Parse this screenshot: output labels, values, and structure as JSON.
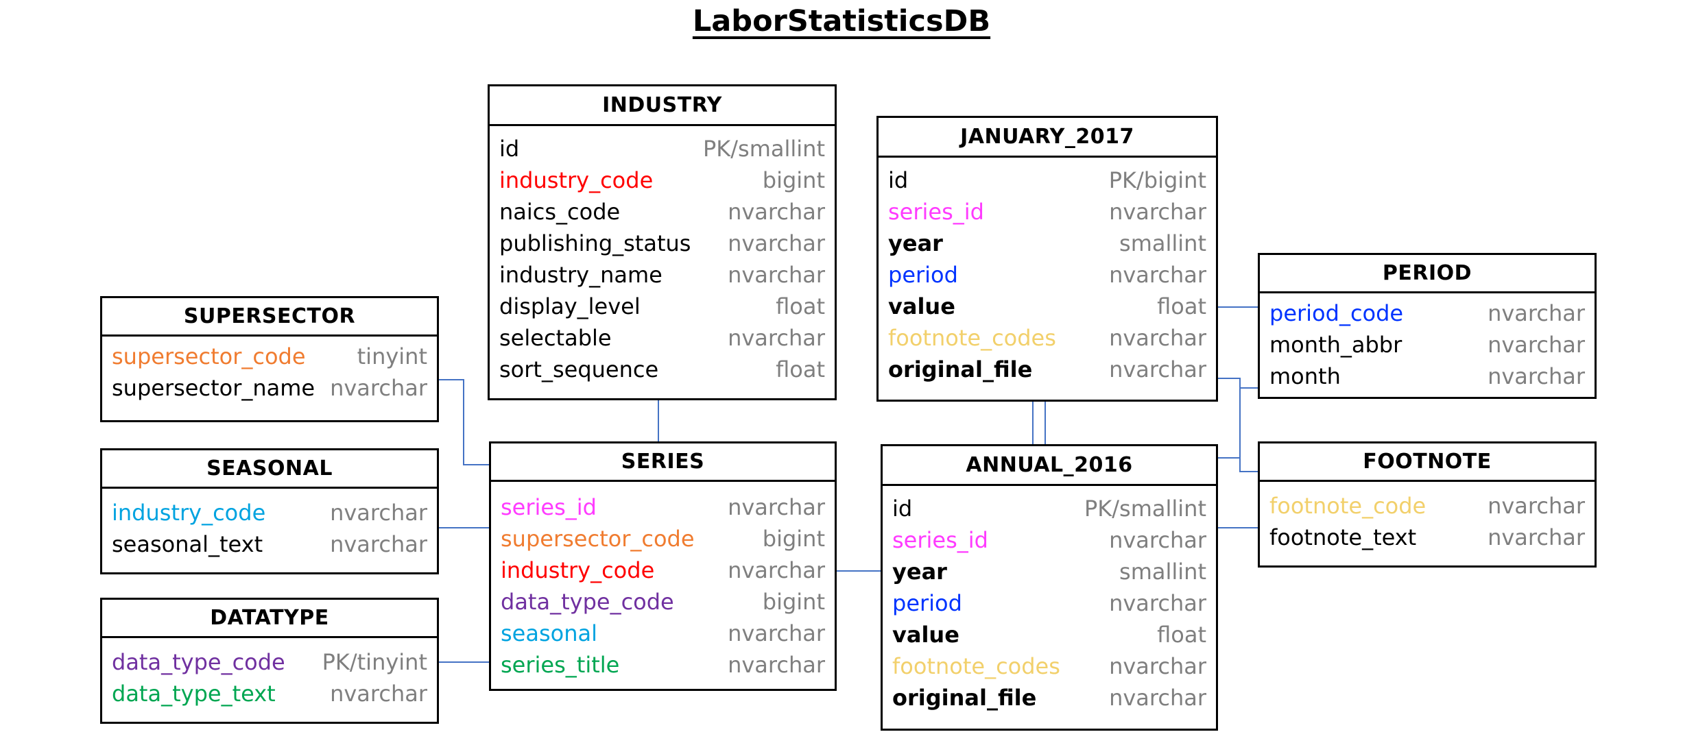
{
  "title": "LaborStatisticsDB",
  "colors": {
    "black": "#000000",
    "red": "#ff0000",
    "orange": "#f07c30",
    "magenta": "#ff3bff",
    "purple": "#7030a0",
    "cyan": "#00a3e0",
    "green": "#00a651",
    "blue": "#0033ff",
    "yellow": "#f2d06b",
    "type_gray": "#7f7f7f",
    "connector": "#4472c4"
  },
  "tables": {
    "industry": {
      "name": "INDUSTRY",
      "fields": [
        {
          "name": "id",
          "type": "PK/smallint",
          "color": "#000000"
        },
        {
          "name": "industry_code",
          "type": "bigint",
          "color": "#ff0000"
        },
        {
          "name": "naics_code",
          "type": "nvarchar",
          "color": "#000000"
        },
        {
          "name": "publishing_status",
          "type": "nvarchar",
          "color": "#000000"
        },
        {
          "name": "industry_name",
          "type": "nvarchar",
          "color": "#000000"
        },
        {
          "name": "display_level",
          "type": "float",
          "color": "#000000"
        },
        {
          "name": "selectable",
          "type": "nvarchar",
          "color": "#000000"
        },
        {
          "name": "sort_sequence",
          "type": "float",
          "color": "#000000"
        }
      ]
    },
    "january_2017": {
      "name": "JANUARY_2017",
      "fields": [
        {
          "name": "id",
          "type": "PK/bigint",
          "color": "#000000"
        },
        {
          "name": "series_id",
          "type": "nvarchar",
          "color": "#ff3bff"
        },
        {
          "name": "year",
          "type": "smallint",
          "color": "#000000",
          "bold": true
        },
        {
          "name": "period",
          "type": "nvarchar",
          "color": "#0033ff"
        },
        {
          "name": "value",
          "type": "float",
          "color": "#000000",
          "bold": true
        },
        {
          "name": "footnote_codes",
          "type": "nvarchar",
          "color": "#f2d06b"
        },
        {
          "name": "original_file",
          "type": "nvarchar",
          "color": "#000000",
          "bold": true
        }
      ]
    },
    "period": {
      "name": "PERIOD",
      "fields": [
        {
          "name": "period_code",
          "type": "nvarchar",
          "color": "#0033ff"
        },
        {
          "name": "month_abbr",
          "type": "nvarchar",
          "color": "#000000"
        },
        {
          "name": "month",
          "type": "nvarchar",
          "color": "#000000"
        }
      ]
    },
    "supersector": {
      "name": "SUPERSECTOR",
      "fields": [
        {
          "name": "supersector_code",
          "type": "tinyint",
          "color": "#f07c30"
        },
        {
          "name": "supersector_name",
          "type": "nvarchar",
          "color": "#000000"
        }
      ]
    },
    "seasonal": {
      "name": "SEASONAL",
      "fields": [
        {
          "name": "industry_code",
          "type": "nvarchar",
          "color": "#00a3e0"
        },
        {
          "name": "seasonal_text",
          "type": "nvarchar",
          "color": "#000000"
        }
      ]
    },
    "datatype": {
      "name": "DATATYPE",
      "fields": [
        {
          "name": "data_type_code",
          "type": "PK/tinyint",
          "color": "#7030a0"
        },
        {
          "name": "data_type_text",
          "type": "nvarchar",
          "color": "#00a651"
        }
      ]
    },
    "series": {
      "name": "SERIES",
      "fields": [
        {
          "name": "series_id",
          "type": "nvarchar",
          "color": "#ff3bff"
        },
        {
          "name": "supersector_code",
          "type": "bigint",
          "color": "#f07c30"
        },
        {
          "name": "industry_code",
          "type": "nvarchar",
          "color": "#ff0000"
        },
        {
          "name": "data_type_code",
          "type": "bigint",
          "color": "#7030a0"
        },
        {
          "name": "seasonal",
          "type": "nvarchar",
          "color": "#00a3e0"
        },
        {
          "name": "series_title",
          "type": "nvarchar",
          "color": "#00a651"
        }
      ]
    },
    "annual_2016": {
      "name": "ANNUAL_2016",
      "fields": [
        {
          "name": "id",
          "type": "PK/smallint",
          "color": "#000000"
        },
        {
          "name": "series_id",
          "type": "nvarchar",
          "color": "#ff3bff"
        },
        {
          "name": "year",
          "type": "smallint",
          "color": "#000000",
          "bold": true
        },
        {
          "name": "period",
          "type": "nvarchar",
          "color": "#0033ff"
        },
        {
          "name": "value",
          "type": "float",
          "color": "#000000",
          "bold": true
        },
        {
          "name": "footnote_codes",
          "type": "nvarchar",
          "color": "#f2d06b"
        },
        {
          "name": "original_file",
          "type": "nvarchar",
          "color": "#000000",
          "bold": true
        }
      ]
    },
    "footnote": {
      "name": "FOOTNOTE",
      "fields": [
        {
          "name": "footnote_code",
          "type": "nvarchar",
          "color": "#f2d06b"
        },
        {
          "name": "footnote_text",
          "type": "nvarchar",
          "color": "#000000"
        }
      ]
    }
  }
}
